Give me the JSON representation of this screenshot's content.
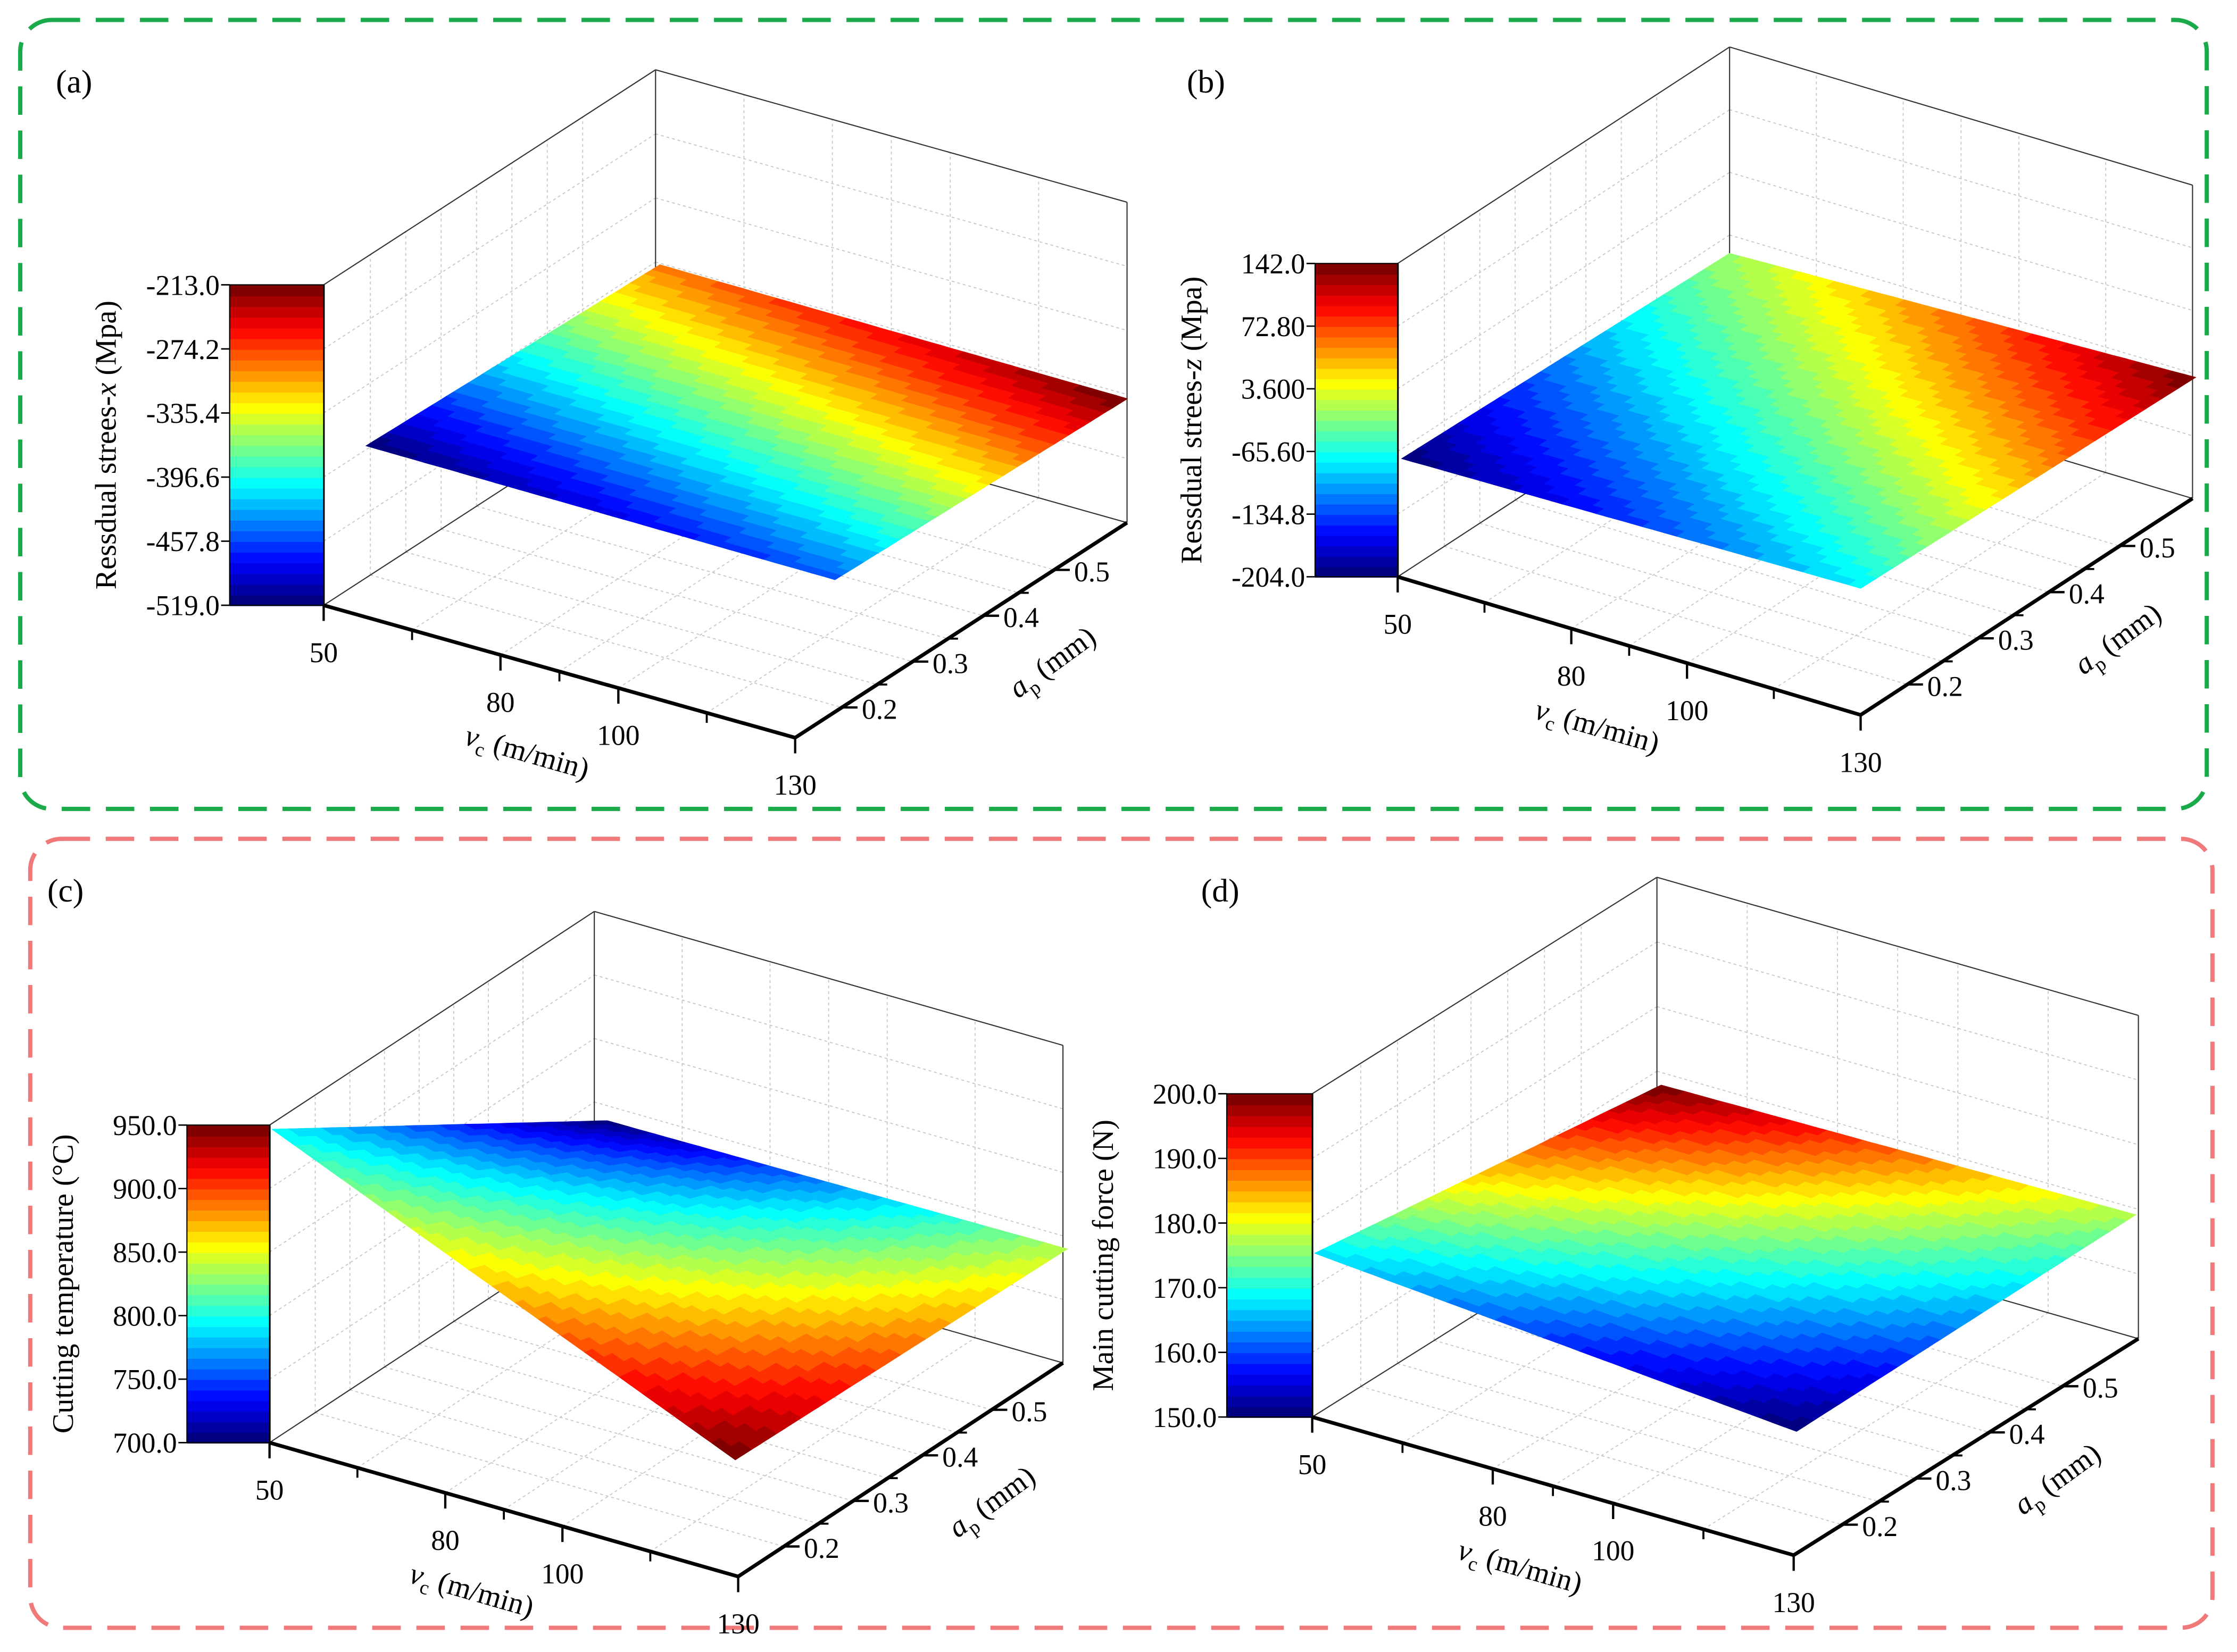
{
  "frames": {
    "top_color": "#1aaa4a",
    "bottom_color": "#f07a7a"
  },
  "colormap": "jet",
  "chart_data": [
    {
      "type": "surface",
      "panel_label": "(a)",
      "zlabel": {
        "pre": "Ressdual strees-",
        "var": "x",
        "post": " (Mpa)"
      },
      "xlabel": {
        "var": "v",
        "sub": "c",
        "unit": " (m/min)"
      },
      "ylabel": {
        "var": "a",
        "sub": "p",
        "unit": " (mm)"
      },
      "xticks": [
        "50",
        "80",
        "100",
        "130"
      ],
      "yticks": [
        "0.2",
        "0.3",
        "0.4",
        "0.5"
      ],
      "zticks": [
        "-519.0",
        "-457.8",
        "-396.6",
        "-335.4",
        "-274.2",
        "-213.0"
      ],
      "xlim": [
        50,
        130
      ],
      "ylim": [
        0.13,
        0.6
      ],
      "zlim": [
        -519.0,
        -213.0
      ],
      "corners": {
        "x": [
          50,
          130,
          130,
          50
        ],
        "y": [
          0.13,
          0.13,
          0.6,
          0.6
        ],
        "z": [
          -519,
          -450,
          -213,
          -292
        ]
      }
    },
    {
      "type": "surface",
      "panel_label": "(b)",
      "zlabel": {
        "pre": "Ressdual strees-",
        "var": "z",
        "post": " (Mpa)"
      },
      "xlabel": {
        "var": "v",
        "sub": "c",
        "unit": " (m/min)"
      },
      "ylabel": {
        "var": "a",
        "sub": "p",
        "unit": " (mm)"
      },
      "xticks": [
        "50",
        "80",
        "100",
        "130"
      ],
      "yticks": [
        "0.2",
        "0.3",
        "0.4",
        "0.5"
      ],
      "zticks": [
        "-204.0",
        "-134.8",
        "-65.60",
        "3.600",
        "72.80",
        "142.0"
      ],
      "xlim": [
        50,
        130
      ],
      "ylim": [
        0.13,
        0.6
      ],
      "zlim": [
        -204.0,
        142.0
      ],
      "corners": {
        "x": [
          50,
          130,
          130,
          50
        ],
        "y": [
          0.13,
          0.13,
          0.6,
          0.6
        ],
        "z": [
          -204,
          -75,
          142,
          -20
        ]
      }
    },
    {
      "type": "surface",
      "panel_label": "(c)",
      "zlabel": {
        "pre": "Cutting temperature (°C)",
        "var": "",
        "post": ""
      },
      "xlabel": {
        "var": "v",
        "sub": "c",
        "unit": " (m/min)"
      },
      "ylabel": {
        "var": "a",
        "sub": "p",
        "unit": " (mm)"
      },
      "xticks": [
        "50",
        "80",
        "100",
        "130"
      ],
      "yticks": [
        "0.2",
        "0.3",
        "0.4",
        "0.5"
      ],
      "zticks": [
        "700.0",
        "750.0",
        "800.0",
        "850.0",
        "900.0",
        "950.0"
      ],
      "xlim": [
        50,
        130
      ],
      "ylim": [
        0.13,
        0.6
      ],
      "zlim": [
        700.0,
        950.0
      ],
      "corners": {
        "x": [
          50,
          130,
          130,
          50
        ],
        "y": [
          0.13,
          0.13,
          0.6,
          0.6
        ],
        "z": [
          795,
          950,
          838,
          700
        ]
      }
    },
    {
      "type": "surface",
      "panel_label": "(d)",
      "zlabel": {
        "pre": "Main cutting force (N)",
        "var": "",
        "post": ""
      },
      "xlabel": {
        "var": "v",
        "sub": "c",
        "unit": " (m/min)"
      },
      "ylabel": {
        "var": "a",
        "sub": "p",
        "unit": " (mm)"
      },
      "xticks": [
        "50",
        "80",
        "100",
        "130"
      ],
      "yticks": [
        "0.2",
        "0.3",
        "0.4",
        "0.5"
      ],
      "zticks": [
        "150.0",
        "160.0",
        "170.0",
        "180.0",
        "190.0",
        "200.0"
      ],
      "xlim": [
        50,
        130
      ],
      "ylim": [
        0.13,
        0.6
      ],
      "zlim": [
        150.0,
        200.0
      ],
      "corners": {
        "x": [
          50,
          130,
          130,
          50
        ],
        "y": [
          0.13,
          0.13,
          0.6,
          0.6
        ],
        "z": [
          168,
          150,
          177,
          200
        ]
      }
    }
  ]
}
